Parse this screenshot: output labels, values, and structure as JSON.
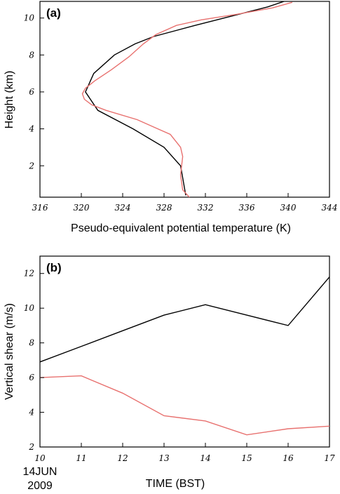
{
  "chart_data": [
    {
      "type": "line",
      "panel_label": "(a)",
      "xlabel": "Pseudo-equivalent potential temperature (K)",
      "ylabel": "Height (km)",
      "xlim": [
        316,
        344
      ],
      "ylim": [
        0.3,
        10.9
      ],
      "xticks": [
        316,
        320,
        324,
        328,
        332,
        336,
        340,
        344
      ],
      "yticks": [
        2,
        4,
        6,
        8,
        10
      ],
      "grid": false,
      "series": [
        {
          "color": "#000000",
          "x": [
            330.1,
            329.6,
            328.0,
            325.0,
            321.6,
            320.4,
            321.2,
            323.2,
            325.2,
            327.0,
            331.0,
            334.5,
            338.0,
            339.6
          ],
          "y": [
            0.4,
            2.0,
            3.0,
            4.0,
            5.0,
            6.0,
            7.0,
            8.0,
            8.6,
            9.0,
            9.6,
            10.1,
            10.6,
            10.9
          ]
        },
        {
          "color": "#e8716f",
          "x": [
            330.6,
            329.8,
            329.6,
            329.8,
            329.6,
            328.6,
            327.4,
            325.4,
            322.4,
            321.0,
            320.3,
            320.1,
            320.4,
            321.3,
            322.9,
            324.6,
            326.0,
            327.2,
            329.2,
            331.6,
            335.0,
            338.5,
            340.4
          ],
          "y": [
            0.2,
            0.7,
            1.5,
            2.5,
            3.0,
            3.7,
            4.0,
            4.5,
            5.0,
            5.3,
            5.6,
            5.9,
            6.2,
            6.6,
            7.2,
            7.9,
            8.6,
            9.1,
            9.6,
            9.9,
            10.2,
            10.55,
            10.85
          ]
        }
      ]
    },
    {
      "type": "line",
      "panel_label": "(b)",
      "xlabel": "TIME (BST)",
      "ylabel": "Vertical shear (m/s)",
      "date_label": [
        "14JUN",
        "2009"
      ],
      "xlim": [
        10,
        17
      ],
      "ylim": [
        2,
        13
      ],
      "xticks": [
        10,
        11,
        12,
        13,
        14,
        15,
        16,
        17
      ],
      "yticks": [
        2,
        4,
        6,
        8,
        10,
        12
      ],
      "grid": false,
      "series": [
        {
          "color": "#000000",
          "x": [
            10,
            11,
            12,
            13,
            14,
            15,
            16,
            17
          ],
          "y": [
            6.9,
            7.8,
            8.7,
            9.6,
            10.2,
            9.6,
            9.0,
            11.8
          ]
        },
        {
          "color": "#e8716f",
          "x": [
            10,
            11,
            12,
            13,
            14,
            15,
            16,
            17
          ],
          "y": [
            6.0,
            6.1,
            5.1,
            3.8,
            3.5,
            2.7,
            3.05,
            3.2
          ]
        }
      ]
    }
  ]
}
